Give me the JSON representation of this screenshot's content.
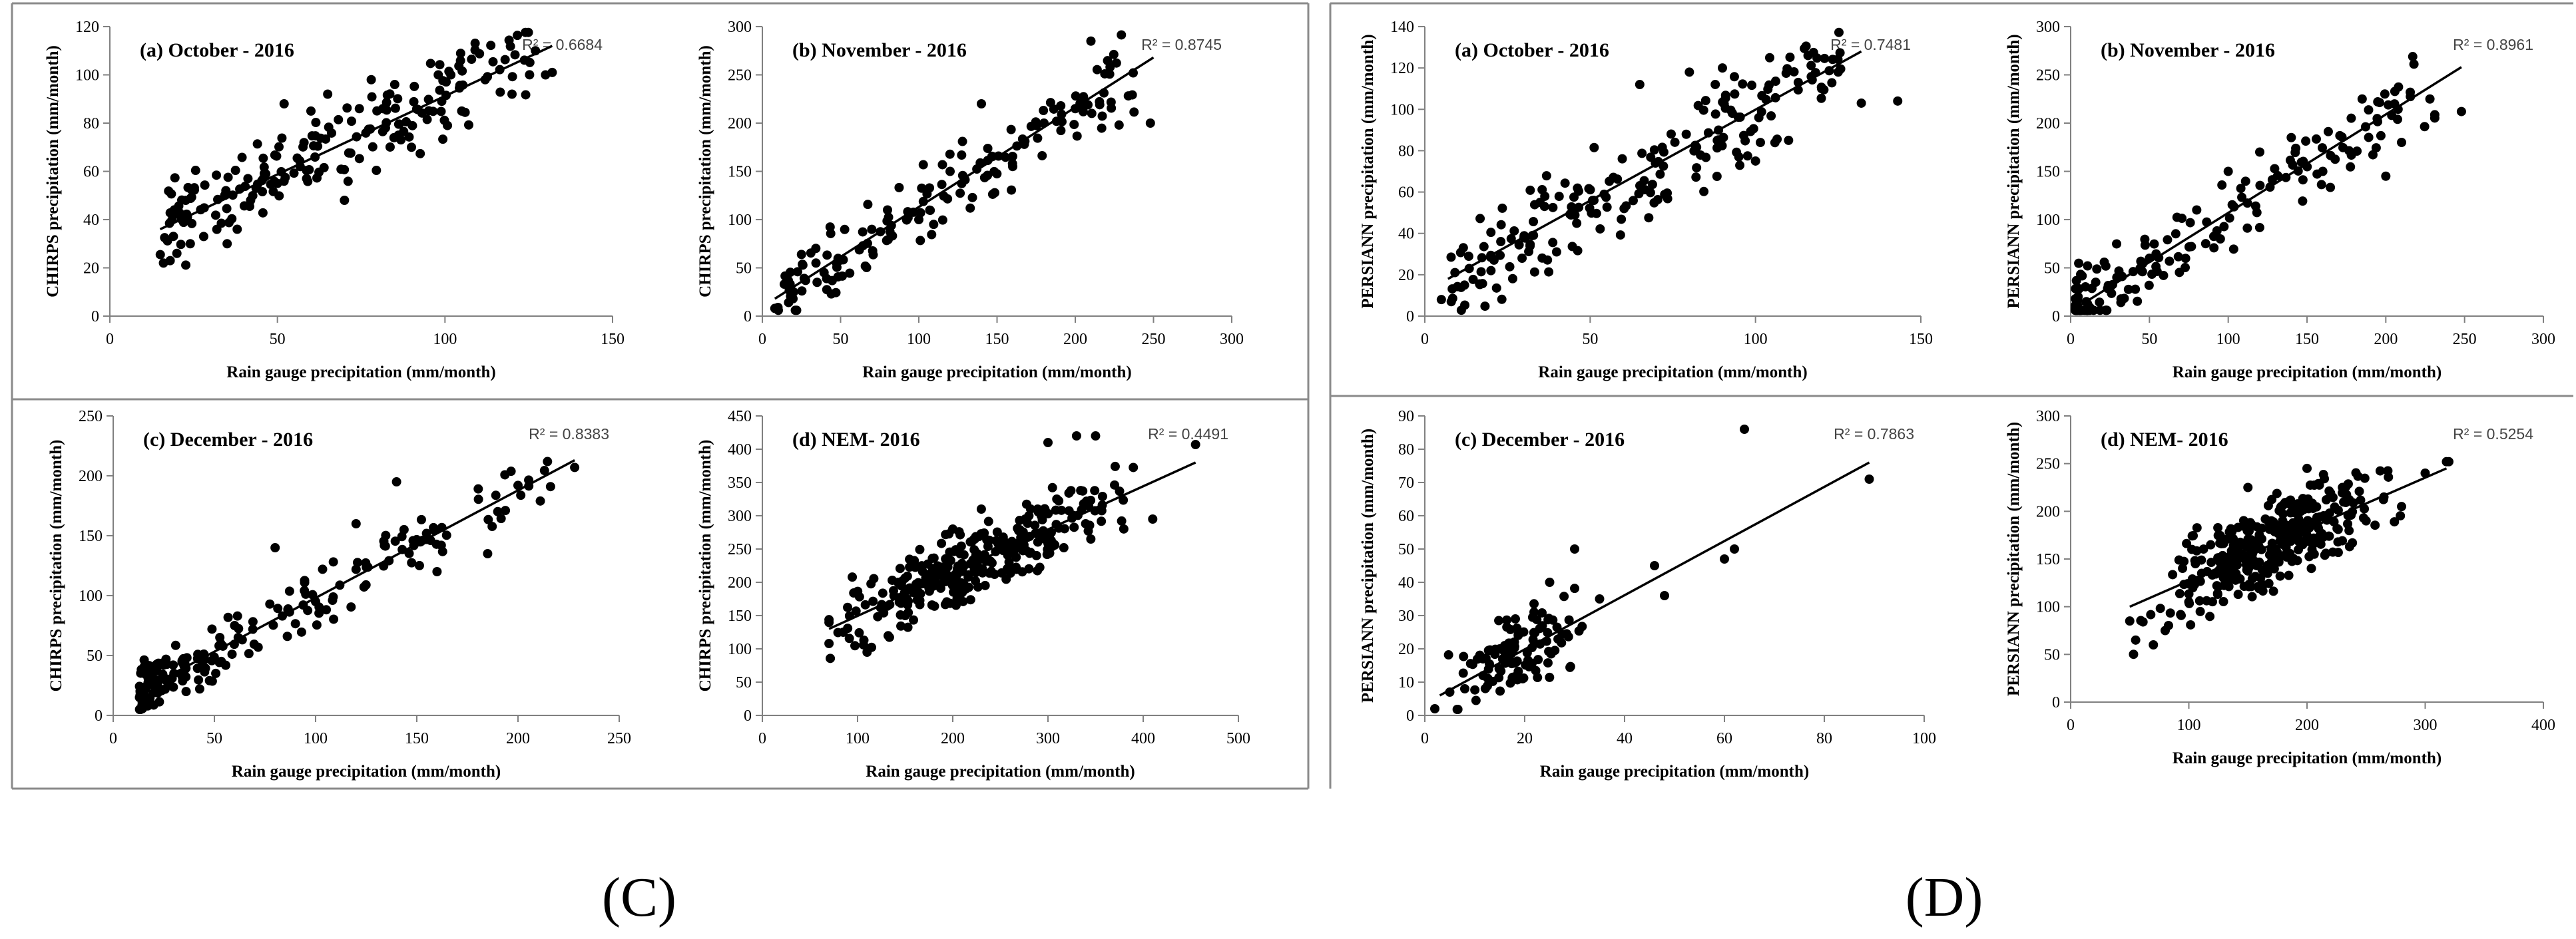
{
  "figure_labels": {
    "left": "(C)",
    "right": "(D)"
  },
  "chart_data": [
    {
      "type": "scatter",
      "group": "C",
      "panel": "(a) October -  2016",
      "r2": "R² = 0.6684",
      "xlabel": "Rain gauge precipitation (mm/month)",
      "ylabel": "CHIRPS precipitation (mm/month)",
      "xlim": [
        0,
        150
      ],
      "ylim": [
        0,
        120
      ],
      "xticks": [
        0,
        50,
        100,
        150
      ],
      "yticks": [
        0,
        20,
        40,
        60,
        80,
        100,
        120
      ],
      "trend": [
        [
          15,
          36
        ],
        [
          132,
          112
        ]
      ],
      "seed": 11,
      "n": 190,
      "noise": 0.11,
      "points": [
        [
          16,
          22
        ],
        [
          18,
          23
        ],
        [
          20,
          26
        ],
        [
          24,
          30
        ],
        [
          28,
          33
        ],
        [
          35,
          30
        ],
        [
          38,
          36
        ],
        [
          42,
          48
        ],
        [
          50,
          55
        ],
        [
          52,
          88
        ],
        [
          60,
          85
        ],
        [
          65,
          92
        ],
        [
          70,
          48
        ],
        [
          78,
          98
        ],
        [
          85,
          96
        ],
        [
          90,
          70
        ],
        [
          98,
          100
        ],
        [
          105,
          85
        ],
        [
          112,
          98
        ],
        [
          120,
          92
        ],
        [
          127,
          110
        ],
        [
          130,
          100
        ],
        [
          132,
          101
        ]
      ]
    },
    {
      "type": "scatter",
      "group": "C",
      "panel": "(b) November -  2016",
      "r2": "R² = 0.8745",
      "xlabel": "Rain gauge precipitation (mm/month)",
      "ylabel": "CHIRPS precipitation (mm/month)",
      "xlim": [
        0,
        300
      ],
      "ylim": [
        0,
        300
      ],
      "xticks": [
        0,
        50,
        100,
        150,
        200,
        250,
        300
      ],
      "yticks": [
        0,
        50,
        100,
        150,
        200,
        250,
        300
      ],
      "trend": [
        [
          8,
          18
        ],
        [
          250,
          268
        ]
      ],
      "seed": 23,
      "n": 150,
      "noise": 0.1,
      "points": [
        [
          8,
          8
        ],
        [
          10,
          9
        ],
        [
          20,
          25
        ],
        [
          35,
          35
        ],
        [
          50,
          58
        ],
        [
          80,
          110
        ],
        [
          100,
          100
        ],
        [
          120,
          150
        ],
        [
          140,
          220
        ],
        [
          160,
          155
        ],
        [
          180,
          200
        ],
        [
          200,
          215
        ],
        [
          210,
          285
        ],
        [
          228,
          198
        ],
        [
          248,
          200
        ]
      ]
    },
    {
      "type": "scatter",
      "group": "C",
      "panel": "(c) December -  2016",
      "r2": "R² = 0.8383",
      "xlabel": "Rain gauge precipitation (mm/month)",
      "ylabel": "CHIRPS precipitation (mm/month)",
      "xlim": [
        0,
        250
      ],
      "ylim": [
        0,
        250
      ],
      "xticks": [
        0,
        50,
        100,
        150,
        200,
        250
      ],
      "yticks": [
        0,
        50,
        100,
        150,
        200,
        250
      ],
      "trend": [
        [
          13,
          20
        ],
        [
          228,
          213
        ]
      ],
      "seed": 37,
      "n": 200,
      "noise": 0.07,
      "skew": 2.2,
      "points": [
        [
          13,
          15
        ],
        [
          20,
          25
        ],
        [
          30,
          35
        ],
        [
          45,
          50
        ],
        [
          60,
          75
        ],
        [
          80,
          140
        ],
        [
          100,
          95
        ],
        [
          120,
          160
        ],
        [
          140,
          195
        ],
        [
          160,
          120
        ],
        [
          185,
          135
        ],
        [
          200,
          192
        ],
        [
          228,
          207
        ]
      ]
    },
    {
      "type": "scatter",
      "group": "C",
      "panel": "(d) NEM- 2016",
      "r2": "R² = 0.4491",
      "xlabel": "Rain gauge precipitation (mm/month)",
      "ylabel": "CHIRPS precipitation (mm/month)",
      "xlim": [
        0,
        500
      ],
      "ylim": [
        0,
        450
      ],
      "xticks": [
        0,
        100,
        200,
        300,
        400,
        500
      ],
      "yticks": [
        0,
        50,
        100,
        150,
        200,
        250,
        300,
        350,
        400,
        450
      ],
      "trend": [
        [
          70,
          130
        ],
        [
          455,
          380
        ]
      ],
      "seed": 41,
      "n": 330,
      "noise": 0.09,
      "xcenter": 220,
      "xspread": 65,
      "points": [
        [
          70,
          108
        ],
        [
          85,
          125
        ],
        [
          110,
          95
        ],
        [
          150,
          150
        ],
        [
          200,
          280
        ],
        [
          230,
          310
        ],
        [
          280,
          300
        ],
        [
          300,
          410
        ],
        [
          330,
          420
        ],
        [
          350,
          420
        ],
        [
          345,
          265
        ],
        [
          410,
          295
        ],
        [
          455,
          407
        ]
      ]
    },
    {
      "type": "scatter",
      "group": "D",
      "panel": "(a) October -  2016",
      "r2": "R² = 0.7481",
      "xlabel": "Rain gauge precipitation (mm/month)",
      "ylabel": "PERSIANN precipitation (mm/month)",
      "xlim": [
        0,
        150
      ],
      "ylim": [
        0,
        140
      ],
      "xticks": [
        0,
        50,
        100,
        150
      ],
      "yticks": [
        0,
        20,
        40,
        60,
        80,
        100,
        120,
        140
      ],
      "trend": [
        [
          7,
          18
        ],
        [
          132,
          128
        ]
      ],
      "seed": 53,
      "n": 200,
      "noise": 0.13,
      "points": [
        [
          5,
          8
        ],
        [
          8,
          7
        ],
        [
          12,
          15
        ],
        [
          20,
          22
        ],
        [
          30,
          38
        ],
        [
          45,
          50
        ],
        [
          65,
          112
        ],
        [
          80,
          118
        ],
        [
          90,
          120
        ],
        [
          100,
          75
        ],
        [
          110,
          85
        ],
        [
          120,
          110
        ],
        [
          125,
          118
        ],
        [
          132,
          103
        ],
        [
          143,
          104
        ]
      ]
    },
    {
      "type": "scatter",
      "group": "D",
      "panel": "(b) November -  2016",
      "r2": "R² = 0.8961",
      "xlabel": "Rain gauge precipitation (mm/month)",
      "ylabel": "PERSIANN precipitation (mm/month)",
      "xlim": [
        0,
        300
      ],
      "ylim": [
        0,
        300
      ],
      "xticks": [
        0,
        50,
        100,
        150,
        200,
        250,
        300
      ],
      "yticks": [
        0,
        50,
        100,
        150,
        200,
        250,
        300
      ],
      "trend": [
        [
          3,
          8
        ],
        [
          248,
          258
        ]
      ],
      "seed": 67,
      "n": 170,
      "noise": 0.1,
      "skew": 1.8,
      "points": [
        [
          3,
          8
        ],
        [
          10,
          15
        ],
        [
          25,
          30
        ],
        [
          50,
          60
        ],
        [
          80,
          110
        ],
        [
          95,
          80
        ],
        [
          100,
          150
        ],
        [
          120,
          170
        ],
        [
          140,
          185
        ],
        [
          160,
          150
        ],
        [
          185,
          225
        ],
        [
          200,
          145
        ],
        [
          210,
          180
        ],
        [
          228,
          225
        ],
        [
          248,
          212
        ]
      ]
    },
    {
      "type": "scatter",
      "group": "D",
      "panel": "(c) December -  2016",
      "r2": "R² = 0.7863",
      "xlabel": "Rain gauge precipitation (mm/month)",
      "ylabel": "PERSIANN precipitation (mm/month)",
      "xlim": [
        0,
        100
      ],
      "ylim": [
        0,
        90
      ],
      "xticks": [
        0,
        20,
        40,
        60,
        80,
        100
      ],
      "yticks": [
        0,
        10,
        20,
        30,
        40,
        50,
        60,
        70,
        80,
        90
      ],
      "trend": [
        [
          3,
          6
        ],
        [
          89,
          76
        ]
      ],
      "seed": 79,
      "n": 110,
      "noise": 0.1,
      "xcenter": 20,
      "xspread": 6,
      "points": [
        [
          2,
          2
        ],
        [
          5,
          7
        ],
        [
          8,
          8
        ],
        [
          15,
          20
        ],
        [
          25,
          40
        ],
        [
          30,
          50
        ],
        [
          35,
          35
        ],
        [
          46,
          45
        ],
        [
          48,
          36
        ],
        [
          60,
          47
        ],
        [
          62,
          50
        ],
        [
          64,
          86
        ],
        [
          89,
          71
        ]
      ]
    },
    {
      "type": "scatter",
      "group": "D",
      "panel": "(d) NEM- 2016",
      "r2": "R² = 0.5254",
      "xlabel": "Rain gauge precipitation (mm/month)",
      "ylabel": "PERSIANN precipitation (mm/month)",
      "xlim": [
        0,
        400
      ],
      "ylim": [
        0,
        300
      ],
      "xticks": [
        0,
        100,
        200,
        300,
        400
      ],
      "yticks": [
        0,
        50,
        100,
        150,
        200,
        250,
        300
      ],
      "trend": [
        [
          50,
          100
        ],
        [
          318,
          245
        ]
      ],
      "seed": 97,
      "n": 350,
      "noise": 0.11,
      "xcenter": 165,
      "xspread": 45,
      "points": [
        [
          50,
          85
        ],
        [
          55,
          65
        ],
        [
          70,
          60
        ],
        [
          80,
          75
        ],
        [
          100,
          105
        ],
        [
          150,
          225
        ],
        [
          200,
          245
        ],
        [
          230,
          225
        ],
        [
          250,
          190
        ],
        [
          280,
          205
        ],
        [
          300,
          240
        ],
        [
          318,
          252
        ],
        [
          320,
          252
        ]
      ]
    }
  ]
}
